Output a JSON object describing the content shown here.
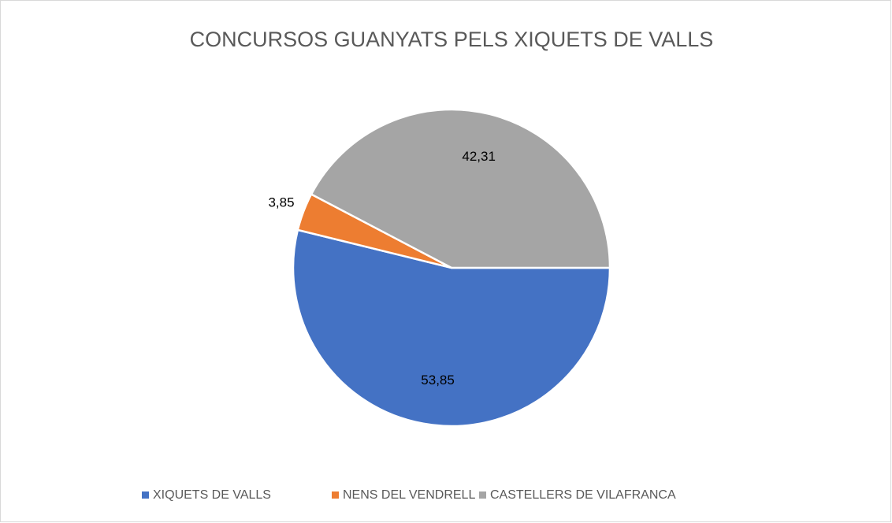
{
  "chart_data": {
    "type": "pie",
    "title": "CONCURSOS GUANYATS PELS XIQUETS DE VALLS",
    "categories": [
      "XIQUETS DE VALLS",
      "NENS DEL VENDRELL",
      "CASTELLERS DE VILAFRANCA"
    ],
    "values": [
      53.85,
      3.85,
      42.31
    ],
    "value_labels": [
      "53,85",
      "3,85",
      "42,31"
    ],
    "colors": [
      "#4472c4",
      "#ed7d31",
      "#a5a5a5"
    ],
    "legend": "bottom"
  }
}
